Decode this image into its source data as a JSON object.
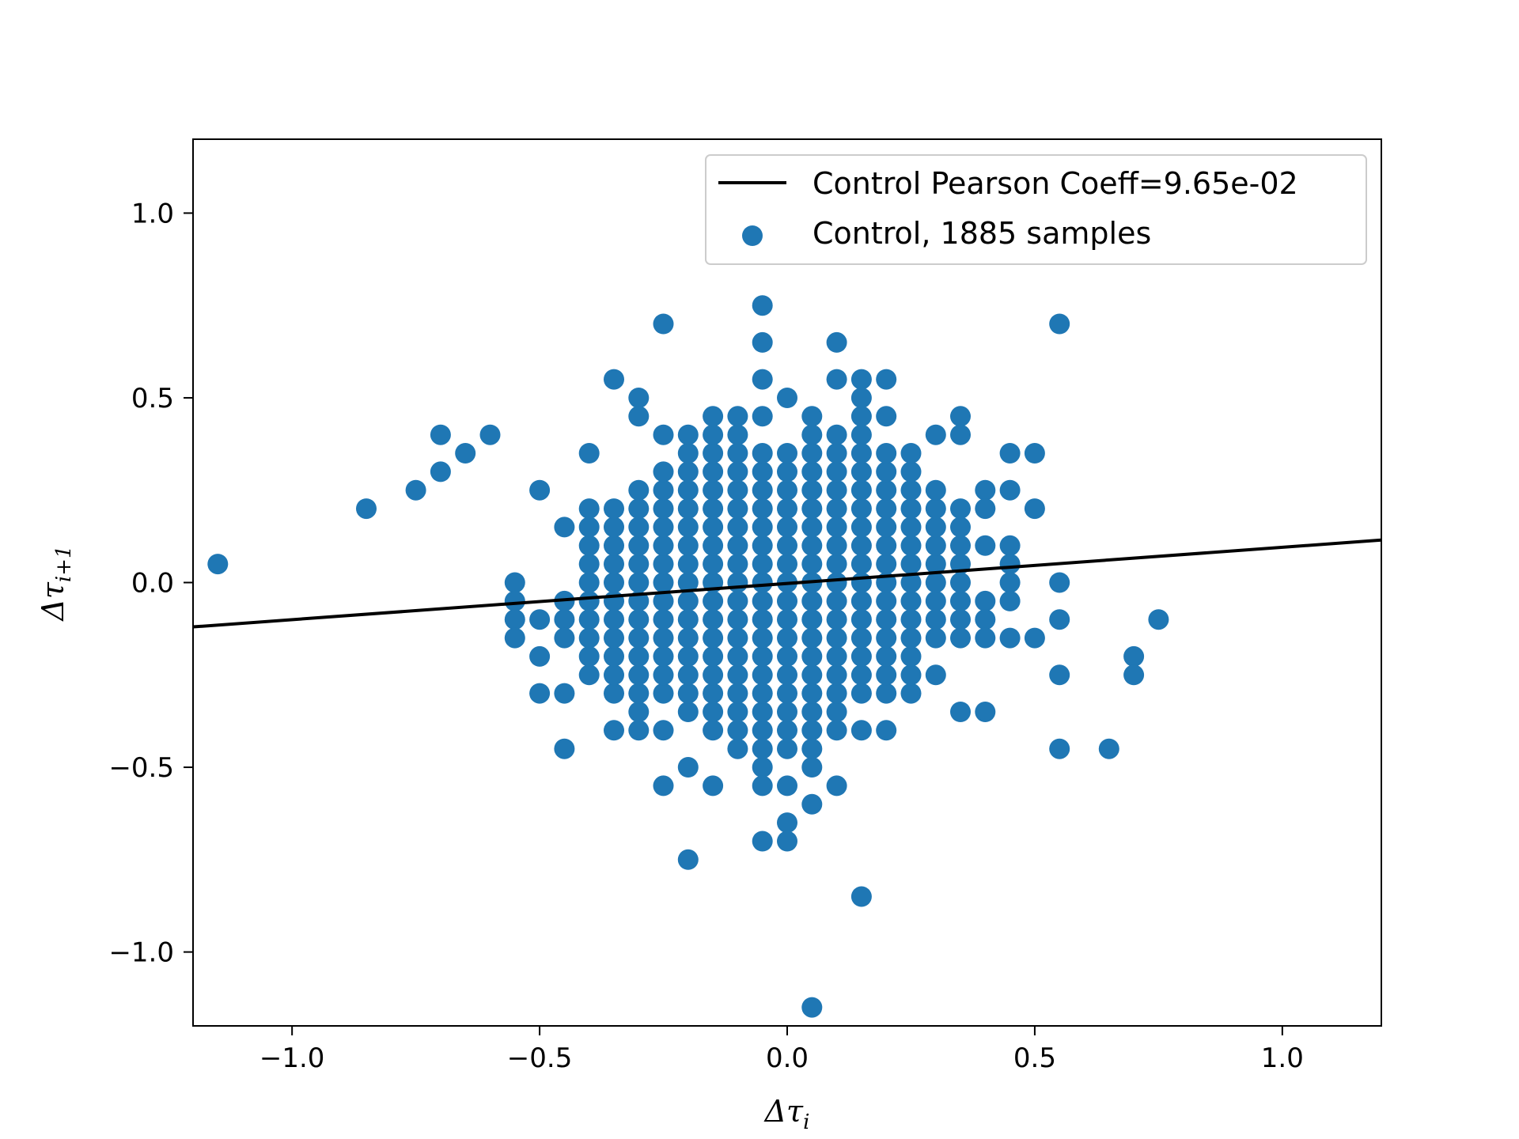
{
  "chart_data": {
    "type": "scatter",
    "title": "",
    "xlabel": "Δτ_i",
    "ylabel": "Δτ_{i+1}",
    "xlabel_main": "Δτ",
    "xlabel_sub": "i",
    "ylabel_main": "Δτ",
    "ylabel_sub": "i+1",
    "xlim": [
      -1.2,
      1.2
    ],
    "ylim": [
      -1.2,
      1.2
    ],
    "xticks": [
      -1.0,
      -0.5,
      0.0,
      0.5,
      1.0
    ],
    "yticks": [
      -1.0,
      -0.5,
      0.0,
      0.5,
      1.0
    ],
    "xtick_labels": [
      "−1.0",
      "−0.5",
      "0.0",
      "0.5",
      "1.0"
    ],
    "ytick_labels": [
      "−1.0",
      "−0.5",
      "0.0",
      "0.5",
      "1.0"
    ],
    "grid": false,
    "legend": {
      "placement": "upper-right",
      "entries": [
        {
          "label": "Control Pearson Coeff=9.65e-02",
          "kind": "line",
          "color": "#000000"
        },
        {
          "label": "Control, 1885 samples",
          "kind": "marker",
          "color": "#1f77b4"
        }
      ]
    },
    "series": [
      {
        "name": "Control Pearson Coeff=9.65e-02",
        "type": "line",
        "color": "#000000",
        "x": [
          -1.2,
          1.2
        ],
        "y": [
          -0.12,
          0.115
        ]
      },
      {
        "name": "Control, 1885 samples",
        "type": "scatter",
        "color": "#1f77b4",
        "core": {
          "x_range": [
            -0.4,
            0.35
          ],
          "y_range": [
            -0.3,
            0.2
          ],
          "step": 0.05
        },
        "column_extents": [
          {
            "x": -0.4,
            "y": [
              -0.25,
              0.2
            ]
          },
          {
            "x": -0.35,
            "y": [
              -0.3,
              0.2
            ]
          },
          {
            "x": -0.3,
            "y": [
              -0.4,
              0.25
            ]
          },
          {
            "x": -0.25,
            "y": [
              -0.3,
              0.3
            ]
          },
          {
            "x": -0.2,
            "y": [
              -0.35,
              0.4
            ]
          },
          {
            "x": -0.15,
            "y": [
              -0.4,
              0.45
            ]
          },
          {
            "x": -0.1,
            "y": [
              -0.45,
              0.45
            ]
          },
          {
            "x": -0.05,
            "y": [
              -0.5,
              0.35
            ]
          },
          {
            "x": 0.0,
            "y": [
              -0.4,
              0.35
            ]
          },
          {
            "x": 0.05,
            "y": [
              -0.5,
              0.45
            ]
          },
          {
            "x": 0.1,
            "y": [
              -0.4,
              0.4
            ]
          },
          {
            "x": 0.15,
            "y": [
              -0.3,
              0.45
            ]
          },
          {
            "x": 0.2,
            "y": [
              -0.3,
              0.35
            ]
          },
          {
            "x": 0.25,
            "y": [
              -0.3,
              0.35
            ]
          },
          {
            "x": 0.3,
            "y": [
              -0.15,
              0.25
            ]
          },
          {
            "x": 0.35,
            "y": [
              -0.15,
              0.2
            ]
          }
        ],
        "points": [
          [
            -1.15,
            0.05
          ],
          [
            -0.85,
            0.2
          ],
          [
            -0.75,
            0.25
          ],
          [
            -0.7,
            0.3
          ],
          [
            -0.7,
            0.4
          ],
          [
            -0.65,
            0.35
          ],
          [
            -0.6,
            0.4
          ],
          [
            -0.55,
            0.0
          ],
          [
            -0.55,
            -0.05
          ],
          [
            -0.55,
            -0.1
          ],
          [
            -0.55,
            -0.15
          ],
          [
            -0.5,
            0.25
          ],
          [
            -0.5,
            -0.1
          ],
          [
            -0.5,
            -0.2
          ],
          [
            -0.5,
            -0.3
          ],
          [
            -0.45,
            0.15
          ],
          [
            -0.45,
            -0.05
          ],
          [
            -0.45,
            -0.1
          ],
          [
            -0.45,
            -0.15
          ],
          [
            -0.45,
            -0.3
          ],
          [
            -0.45,
            -0.45
          ],
          [
            -0.4,
            0.35
          ],
          [
            -0.35,
            0.55
          ],
          [
            -0.35,
            -0.4
          ],
          [
            -0.3,
            0.5
          ],
          [
            -0.3,
            0.45
          ],
          [
            -0.25,
            0.7
          ],
          [
            -0.25,
            0.4
          ],
          [
            -0.25,
            -0.4
          ],
          [
            -0.25,
            -0.55
          ],
          [
            -0.2,
            -0.5
          ],
          [
            -0.2,
            -0.75
          ],
          [
            -0.15,
            -0.55
          ],
          [
            -0.05,
            0.75
          ],
          [
            -0.05,
            0.65
          ],
          [
            -0.05,
            0.55
          ],
          [
            -0.05,
            0.45
          ],
          [
            -0.05,
            -0.55
          ],
          [
            -0.05,
            -0.7
          ],
          [
            0.0,
            0.5
          ],
          [
            0.0,
            -0.45
          ],
          [
            0.0,
            -0.55
          ],
          [
            0.0,
            -0.65
          ],
          [
            0.0,
            -0.7
          ],
          [
            0.05,
            -0.6
          ],
          [
            0.05,
            -1.15
          ],
          [
            0.1,
            0.65
          ],
          [
            0.1,
            0.55
          ],
          [
            0.1,
            -0.55
          ],
          [
            0.15,
            0.55
          ],
          [
            0.15,
            0.5
          ],
          [
            0.15,
            -0.4
          ],
          [
            0.15,
            -0.85
          ],
          [
            0.2,
            0.55
          ],
          [
            0.2,
            0.45
          ],
          [
            0.2,
            -0.4
          ],
          [
            0.3,
            0.4
          ],
          [
            0.3,
            -0.25
          ],
          [
            0.35,
            0.45
          ],
          [
            0.35,
            0.4
          ],
          [
            0.35,
            -0.35
          ],
          [
            0.4,
            0.25
          ],
          [
            0.4,
            0.2
          ],
          [
            0.4,
            0.1
          ],
          [
            0.4,
            -0.05
          ],
          [
            0.4,
            -0.1
          ],
          [
            0.4,
            -0.15
          ],
          [
            0.4,
            -0.35
          ],
          [
            0.45,
            0.35
          ],
          [
            0.45,
            0.25
          ],
          [
            0.45,
            0.1
          ],
          [
            0.45,
            0.05
          ],
          [
            0.45,
            0.0
          ],
          [
            0.45,
            -0.05
          ],
          [
            0.45,
            -0.15
          ],
          [
            0.5,
            0.35
          ],
          [
            0.5,
            0.2
          ],
          [
            0.5,
            -0.15
          ],
          [
            0.55,
            0.7
          ],
          [
            0.55,
            0.0
          ],
          [
            0.55,
            -0.1
          ],
          [
            0.55,
            -0.25
          ],
          [
            0.55,
            -0.45
          ],
          [
            0.65,
            -0.45
          ],
          [
            0.7,
            -0.2
          ],
          [
            0.7,
            -0.25
          ],
          [
            0.75,
            -0.1
          ]
        ]
      }
    ]
  }
}
